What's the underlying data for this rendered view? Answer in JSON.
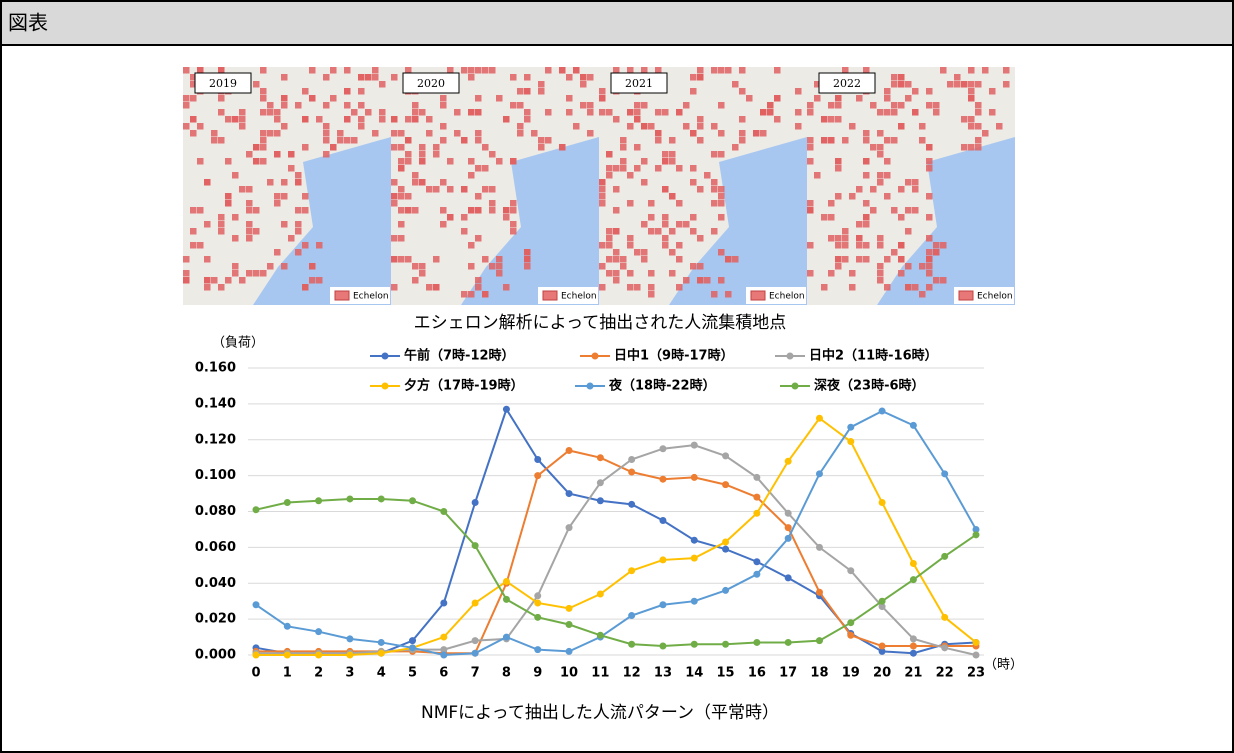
{
  "header": {
    "title": "図表"
  },
  "maps": [
    {
      "year": "2019",
      "legend": "Echelon"
    },
    {
      "year": "2020",
      "legend": "Echelon"
    },
    {
      "year": "2021",
      "legend": "Echelon"
    },
    {
      "year": "2022",
      "legend": "Echelon"
    }
  ],
  "maps_caption": "エシェロン解析によって抽出された人流集積地点",
  "chart_data": {
    "type": "line",
    "y_label": "（負荷）",
    "x_label": "（時）",
    "categories": [
      "0",
      "1",
      "2",
      "3",
      "4",
      "5",
      "6",
      "7",
      "8",
      "9",
      "10",
      "11",
      "12",
      "13",
      "14",
      "15",
      "16",
      "17",
      "18",
      "19",
      "20",
      "21",
      "22",
      "23"
    ],
    "ylim": [
      0,
      0.16
    ],
    "yticks": [
      {
        "value": 0,
        "label": "0.000"
      },
      {
        "value": 0.02,
        "label": "0.020"
      },
      {
        "value": 0.04,
        "label": "0.040"
      },
      {
        "value": 0.06,
        "label": "0.060"
      },
      {
        "value": 0.08,
        "label": "0.080"
      },
      {
        "value": 0.1,
        "label": "0.100"
      },
      {
        "value": 0.12,
        "label": "0.120"
      },
      {
        "value": 0.14,
        "label": "0.140"
      },
      {
        "value": 0.16,
        "label": "0.160"
      }
    ],
    "grid": true,
    "series": [
      {
        "name": "午前（7時-12時）",
        "color": "#4472c4",
        "values": [
          0.004,
          0.001,
          0.001,
          0.001,
          0.001,
          0.008,
          0.029,
          0.085,
          0.137,
          0.109,
          0.09,
          0.086,
          0.084,
          0.075,
          0.064,
          0.059,
          0.052,
          0.043,
          0.033,
          0.012,
          0.002,
          0.001,
          0.006,
          0.007
        ]
      },
      {
        "name": "日中1（9時-17時）",
        "color": "#ed7d31",
        "values": [
          0.002,
          0.002,
          0.002,
          0.002,
          0.002,
          0.002,
          0.001,
          0.001,
          0.04,
          0.1,
          0.114,
          0.11,
          0.102,
          0.098,
          0.099,
          0.095,
          0.088,
          0.071,
          0.035,
          0.011,
          0.005,
          0.005,
          0.005,
          0.005
        ]
      },
      {
        "name": "日中2（11時-16時）",
        "color": "#a5a5a5",
        "values": [
          0.001,
          0.001,
          0.001,
          0.001,
          0.002,
          0.003,
          0.003,
          0.008,
          0.009,
          0.033,
          0.071,
          0.096,
          0.109,
          0.115,
          0.117,
          0.111,
          0.099,
          0.079,
          0.06,
          0.047,
          0.027,
          0.009,
          0.004,
          0.0
        ]
      },
      {
        "name": "夕方（17時-19時）",
        "color": "#ffc000",
        "values": [
          0.0,
          0.0,
          0.0,
          0.0,
          0.001,
          0.004,
          0.01,
          0.029,
          0.041,
          0.029,
          0.026,
          0.034,
          0.047,
          0.053,
          0.054,
          0.063,
          0.079,
          0.108,
          0.132,
          0.119,
          0.085,
          0.051,
          0.021,
          0.007
        ]
      },
      {
        "name": "夜（18時-22時）",
        "color": "#5b9bd5",
        "values": [
          0.028,
          0.016,
          0.013,
          0.009,
          0.007,
          0.004,
          0.0,
          0.001,
          0.01,
          0.003,
          0.002,
          0.01,
          0.022,
          0.028,
          0.03,
          0.036,
          0.045,
          0.065,
          0.101,
          0.127,
          0.136,
          0.128,
          0.101,
          0.07
        ]
      },
      {
        "name": "深夜（23時-6時）",
        "color": "#70ad47",
        "values": [
          0.081,
          0.085,
          0.086,
          0.087,
          0.087,
          0.086,
          0.08,
          0.061,
          0.031,
          0.021,
          0.017,
          0.011,
          0.006,
          0.005,
          0.006,
          0.006,
          0.007,
          0.007,
          0.008,
          0.018,
          0.03,
          0.042,
          0.055,
          0.067
        ]
      }
    ]
  },
  "chart_caption": "NMFによって抽出した人流パターン（平常時）"
}
